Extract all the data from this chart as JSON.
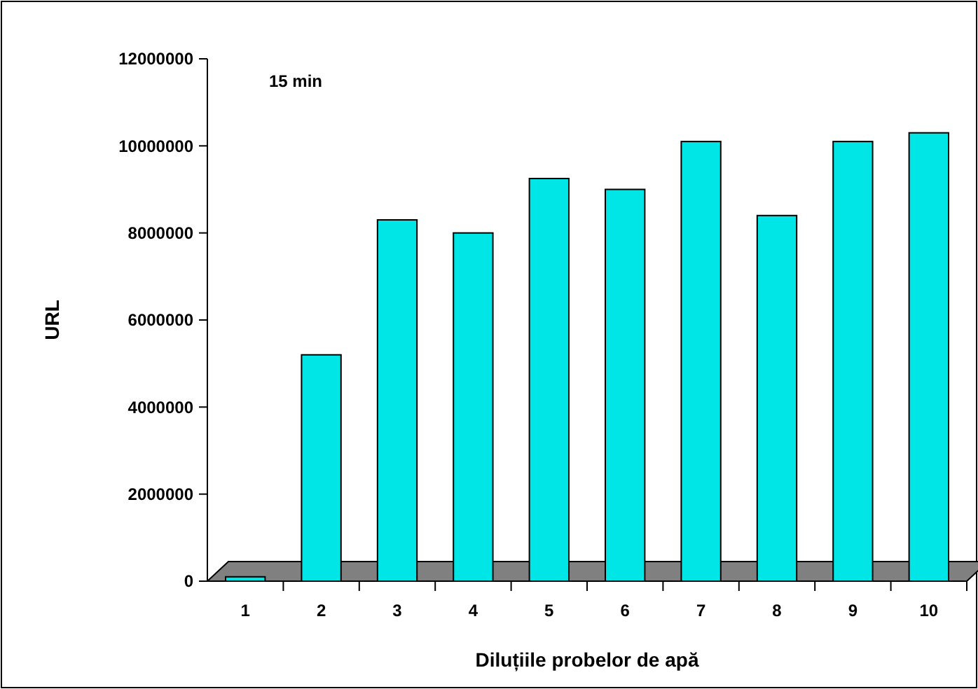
{
  "chart_data": {
    "type": "bar",
    "title": "15 min",
    "xlabel": "Diluțiile probelor de apă",
    "ylabel": "URL",
    "categories": [
      "1",
      "2",
      "3",
      "4",
      "5",
      "6",
      "7",
      "8",
      "9",
      "10"
    ],
    "values": [
      100000,
      5200000,
      8300000,
      8000000,
      9250000,
      9000000,
      10100000,
      8400000,
      10100000,
      10300000
    ],
    "color": "#00e5e5",
    "ylim": [
      0,
      12000000
    ],
    "yticks": [
      0,
      2000000,
      4000000,
      6000000,
      8000000,
      10000000,
      12000000
    ],
    "grid": false
  }
}
